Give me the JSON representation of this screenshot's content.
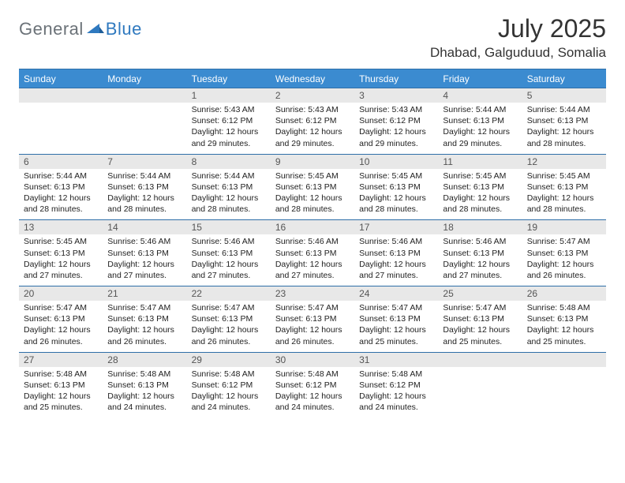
{
  "logo": {
    "general": "General",
    "blue": "Blue"
  },
  "title": "July 2025",
  "location": "Dhabad, Galguduud, Somalia",
  "colors": {
    "header_bg": "#3b8bd0",
    "header_text": "#ffffff",
    "daynum_bg": "#e8e8e8",
    "border": "#2f6fa8",
    "body_text": "#222222",
    "logo_gray": "#6b7278",
    "logo_blue": "#2f79bf"
  },
  "dayLabels": [
    "Sunday",
    "Monday",
    "Tuesday",
    "Wednesday",
    "Thursday",
    "Friday",
    "Saturday"
  ],
  "weeks": [
    {
      "nums": [
        "",
        "",
        "1",
        "2",
        "3",
        "4",
        "5"
      ],
      "cells": [
        {},
        {},
        {
          "sunrise": "Sunrise: 5:43 AM",
          "sunset": "Sunset: 6:12 PM",
          "day1": "Daylight: 12 hours",
          "day2": "and 29 minutes."
        },
        {
          "sunrise": "Sunrise: 5:43 AM",
          "sunset": "Sunset: 6:12 PM",
          "day1": "Daylight: 12 hours",
          "day2": "and 29 minutes."
        },
        {
          "sunrise": "Sunrise: 5:43 AM",
          "sunset": "Sunset: 6:12 PM",
          "day1": "Daylight: 12 hours",
          "day2": "and 29 minutes."
        },
        {
          "sunrise": "Sunrise: 5:44 AM",
          "sunset": "Sunset: 6:13 PM",
          "day1": "Daylight: 12 hours",
          "day2": "and 29 minutes."
        },
        {
          "sunrise": "Sunrise: 5:44 AM",
          "sunset": "Sunset: 6:13 PM",
          "day1": "Daylight: 12 hours",
          "day2": "and 28 minutes."
        }
      ]
    },
    {
      "nums": [
        "6",
        "7",
        "8",
        "9",
        "10",
        "11",
        "12"
      ],
      "cells": [
        {
          "sunrise": "Sunrise: 5:44 AM",
          "sunset": "Sunset: 6:13 PM",
          "day1": "Daylight: 12 hours",
          "day2": "and 28 minutes."
        },
        {
          "sunrise": "Sunrise: 5:44 AM",
          "sunset": "Sunset: 6:13 PM",
          "day1": "Daylight: 12 hours",
          "day2": "and 28 minutes."
        },
        {
          "sunrise": "Sunrise: 5:44 AM",
          "sunset": "Sunset: 6:13 PM",
          "day1": "Daylight: 12 hours",
          "day2": "and 28 minutes."
        },
        {
          "sunrise": "Sunrise: 5:45 AM",
          "sunset": "Sunset: 6:13 PM",
          "day1": "Daylight: 12 hours",
          "day2": "and 28 minutes."
        },
        {
          "sunrise": "Sunrise: 5:45 AM",
          "sunset": "Sunset: 6:13 PM",
          "day1": "Daylight: 12 hours",
          "day2": "and 28 minutes."
        },
        {
          "sunrise": "Sunrise: 5:45 AM",
          "sunset": "Sunset: 6:13 PM",
          "day1": "Daylight: 12 hours",
          "day2": "and 28 minutes."
        },
        {
          "sunrise": "Sunrise: 5:45 AM",
          "sunset": "Sunset: 6:13 PM",
          "day1": "Daylight: 12 hours",
          "day2": "and 28 minutes."
        }
      ]
    },
    {
      "nums": [
        "13",
        "14",
        "15",
        "16",
        "17",
        "18",
        "19"
      ],
      "cells": [
        {
          "sunrise": "Sunrise: 5:45 AM",
          "sunset": "Sunset: 6:13 PM",
          "day1": "Daylight: 12 hours",
          "day2": "and 27 minutes."
        },
        {
          "sunrise": "Sunrise: 5:46 AM",
          "sunset": "Sunset: 6:13 PM",
          "day1": "Daylight: 12 hours",
          "day2": "and 27 minutes."
        },
        {
          "sunrise": "Sunrise: 5:46 AM",
          "sunset": "Sunset: 6:13 PM",
          "day1": "Daylight: 12 hours",
          "day2": "and 27 minutes."
        },
        {
          "sunrise": "Sunrise: 5:46 AM",
          "sunset": "Sunset: 6:13 PM",
          "day1": "Daylight: 12 hours",
          "day2": "and 27 minutes."
        },
        {
          "sunrise": "Sunrise: 5:46 AM",
          "sunset": "Sunset: 6:13 PM",
          "day1": "Daylight: 12 hours",
          "day2": "and 27 minutes."
        },
        {
          "sunrise": "Sunrise: 5:46 AM",
          "sunset": "Sunset: 6:13 PM",
          "day1": "Daylight: 12 hours",
          "day2": "and 27 minutes."
        },
        {
          "sunrise": "Sunrise: 5:47 AM",
          "sunset": "Sunset: 6:13 PM",
          "day1": "Daylight: 12 hours",
          "day2": "and 26 minutes."
        }
      ]
    },
    {
      "nums": [
        "20",
        "21",
        "22",
        "23",
        "24",
        "25",
        "26"
      ],
      "cells": [
        {
          "sunrise": "Sunrise: 5:47 AM",
          "sunset": "Sunset: 6:13 PM",
          "day1": "Daylight: 12 hours",
          "day2": "and 26 minutes."
        },
        {
          "sunrise": "Sunrise: 5:47 AM",
          "sunset": "Sunset: 6:13 PM",
          "day1": "Daylight: 12 hours",
          "day2": "and 26 minutes."
        },
        {
          "sunrise": "Sunrise: 5:47 AM",
          "sunset": "Sunset: 6:13 PM",
          "day1": "Daylight: 12 hours",
          "day2": "and 26 minutes."
        },
        {
          "sunrise": "Sunrise: 5:47 AM",
          "sunset": "Sunset: 6:13 PM",
          "day1": "Daylight: 12 hours",
          "day2": "and 26 minutes."
        },
        {
          "sunrise": "Sunrise: 5:47 AM",
          "sunset": "Sunset: 6:13 PM",
          "day1": "Daylight: 12 hours",
          "day2": "and 25 minutes."
        },
        {
          "sunrise": "Sunrise: 5:47 AM",
          "sunset": "Sunset: 6:13 PM",
          "day1": "Daylight: 12 hours",
          "day2": "and 25 minutes."
        },
        {
          "sunrise": "Sunrise: 5:48 AM",
          "sunset": "Sunset: 6:13 PM",
          "day1": "Daylight: 12 hours",
          "day2": "and 25 minutes."
        }
      ]
    },
    {
      "nums": [
        "27",
        "28",
        "29",
        "30",
        "31",
        "",
        ""
      ],
      "cells": [
        {
          "sunrise": "Sunrise: 5:48 AM",
          "sunset": "Sunset: 6:13 PM",
          "day1": "Daylight: 12 hours",
          "day2": "and 25 minutes."
        },
        {
          "sunrise": "Sunrise: 5:48 AM",
          "sunset": "Sunset: 6:13 PM",
          "day1": "Daylight: 12 hours",
          "day2": "and 24 minutes."
        },
        {
          "sunrise": "Sunrise: 5:48 AM",
          "sunset": "Sunset: 6:12 PM",
          "day1": "Daylight: 12 hours",
          "day2": "and 24 minutes."
        },
        {
          "sunrise": "Sunrise: 5:48 AM",
          "sunset": "Sunset: 6:12 PM",
          "day1": "Daylight: 12 hours",
          "day2": "and 24 minutes."
        },
        {
          "sunrise": "Sunrise: 5:48 AM",
          "sunset": "Sunset: 6:12 PM",
          "day1": "Daylight: 12 hours",
          "day2": "and 24 minutes."
        },
        {},
        {}
      ]
    }
  ]
}
